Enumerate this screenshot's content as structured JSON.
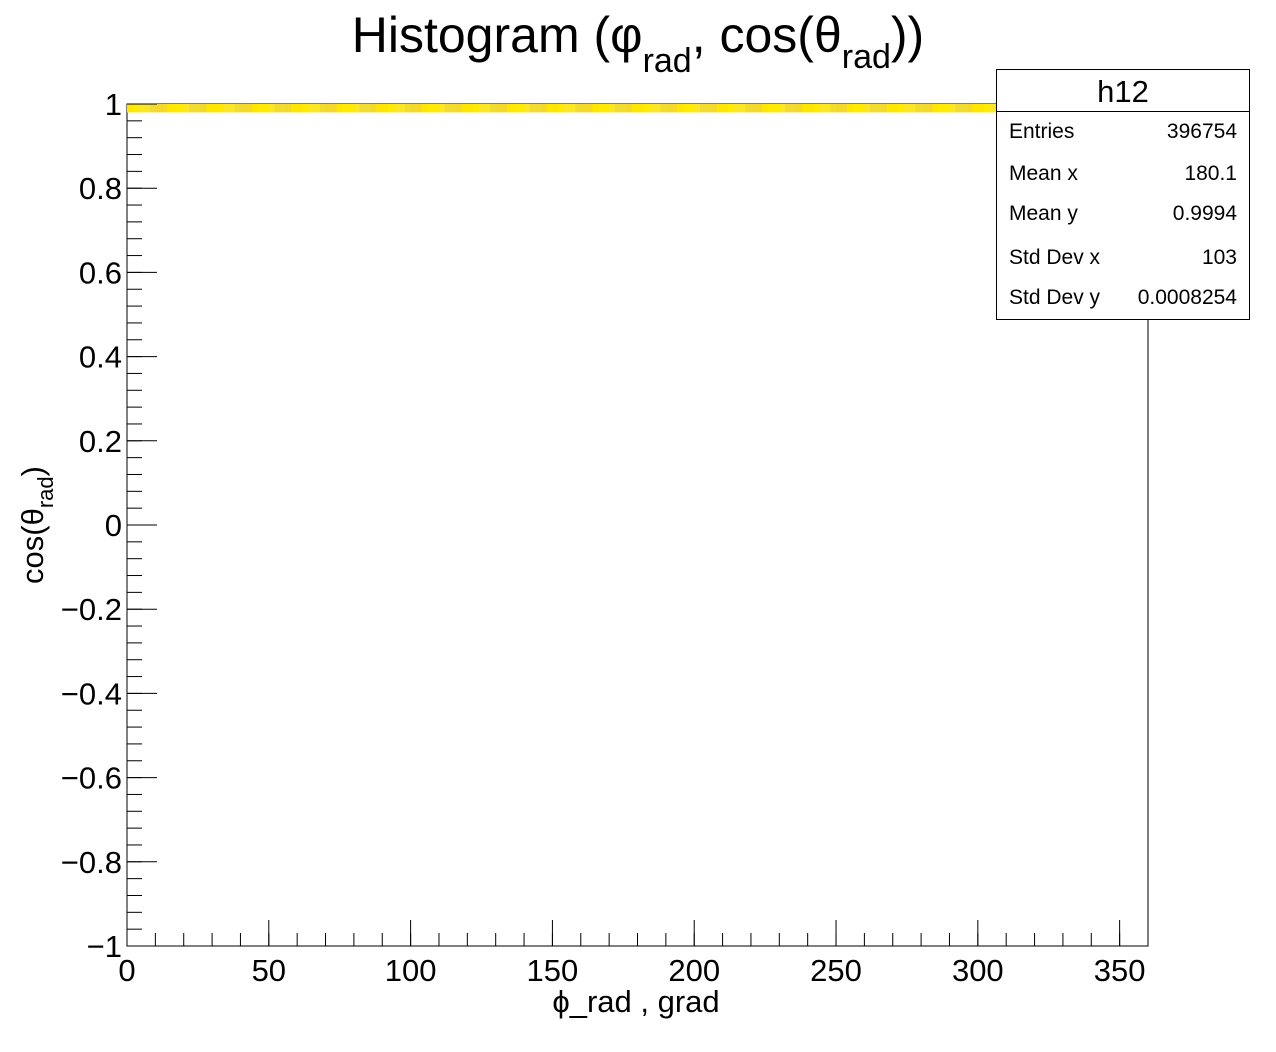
{
  "chart_data": {
    "type": "heatmap",
    "title": "Histogram (φ_rad, cos(θ_rad))",
    "title_parts": {
      "phi": "φ",
      "rad1": "rad",
      "mid": ", cos(",
      "theta": "θ",
      "rad2": "rad",
      "end": "))",
      "prefix": "Histogram ("
    },
    "xlabel": "ϕ_rad , grad",
    "ylabel_parts": {
      "prefix": "cos(",
      "theta": "θ",
      "sub": "rad",
      "end": ")"
    },
    "xlim": [
      0,
      360
    ],
    "ylim": [
      -1,
      1
    ],
    "x_ticks": [
      "0",
      "50",
      "100",
      "150",
      "200",
      "250",
      "300",
      "350"
    ],
    "y_ticks": [
      "−1",
      "−0.8",
      "−0.6",
      "−0.4",
      "−0.2",
      "0",
      "0.2",
      "0.4",
      "0.6",
      "0.8",
      "1"
    ],
    "band": {
      "y_range": [
        0.98,
        1.0
      ],
      "x_range": [
        0,
        360
      ],
      "color": "#ffe600"
    },
    "stats": {
      "name": "h12",
      "rows": [
        {
          "label": "Entries",
          "value": "396754"
        },
        {
          "label": "Mean x",
          "value": "180.1"
        },
        {
          "label": "Mean y",
          "value": "0.9994"
        },
        {
          "label": "Std Dev x",
          "value": "103"
        },
        {
          "label": "Std Dev y",
          "value": "0.0008254"
        }
      ]
    }
  }
}
